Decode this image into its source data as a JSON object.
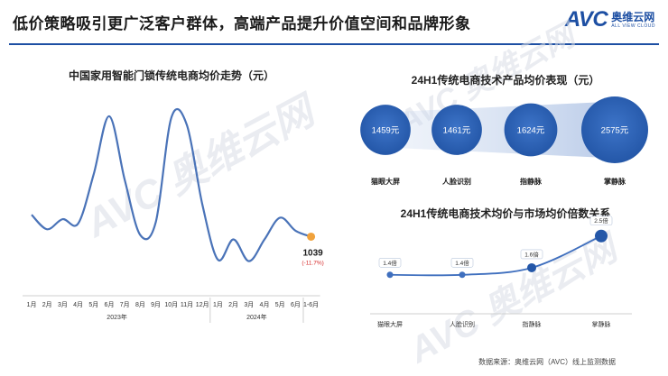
{
  "header": {
    "title": "低价策略吸引更广泛客户群体，高端产品提升价值空间和品牌形象",
    "brand_logo": "AVC",
    "brand_cn": "奥维云网",
    "brand_en": "ALL VIEW CLOUD"
  },
  "watermark_text": "AVC 奥维云网",
  "colors": {
    "accent": "#1d4fa3",
    "line_left": "#4a73b8",
    "end_point": "#f0a23c",
    "change_red": "#d62b2b",
    "bubble": "#2457a8",
    "line_right": "#3f6fbe"
  },
  "chart_data": [
    {
      "type": "line",
      "title": "中国家用智能门锁传统电商均价走势（元）",
      "categories": [
        "1月",
        "2月",
        "3月",
        "4月",
        "5月",
        "6月",
        "7月",
        "8月",
        "9月",
        "10月",
        "11月",
        "12月",
        "1月",
        "2月",
        "3月",
        "4月",
        "5月",
        "6月",
        "1-6月"
      ],
      "year_groups": [
        {
          "label": "2023年",
          "span": [
            0,
            11
          ]
        },
        {
          "label": "2024年",
          "span": [
            12,
            18
          ]
        }
      ],
      "series": [
        {
          "values": [
            1190,
            1090,
            1160,
            1130,
            1470,
            1870,
            1430,
            1050,
            1140,
            1860,
            1810,
            1260,
            880,
            1020,
            870,
            1020,
            1170,
            1080,
            1039
          ]
        }
      ],
      "ylim": [
        650,
        2050
      ],
      "annotation": {
        "value_label": "1039",
        "change_label": "(-11.7%)"
      }
    },
    {
      "type": "bubble",
      "title": "24H1传统电商技术产品均价表现（元）",
      "categories": [
        "猫眼大屏",
        "人脸识别",
        "指静脉",
        "掌静脉"
      ],
      "values": [
        1459,
        1461,
        1624,
        2575
      ],
      "value_labels": [
        "1459元",
        "1461元",
        "1624元",
        "2575元"
      ]
    },
    {
      "type": "line",
      "title": "24H1传统电商技术均价与市场均价倍数关系",
      "categories": [
        "猫眼大屏",
        "人脸识别",
        "指静脉",
        "掌静脉"
      ],
      "series": [
        {
          "values": [
            1.4,
            1.4,
            1.6,
            2.5
          ],
          "labels": [
            "1.4倍",
            "1.4倍",
            "1.6倍",
            "2.5倍"
          ]
        }
      ],
      "ylim": [
        0.5,
        2.8
      ]
    }
  ],
  "footer": {
    "source": "数据来源：奥维云网（AVC）线上监测数据"
  }
}
